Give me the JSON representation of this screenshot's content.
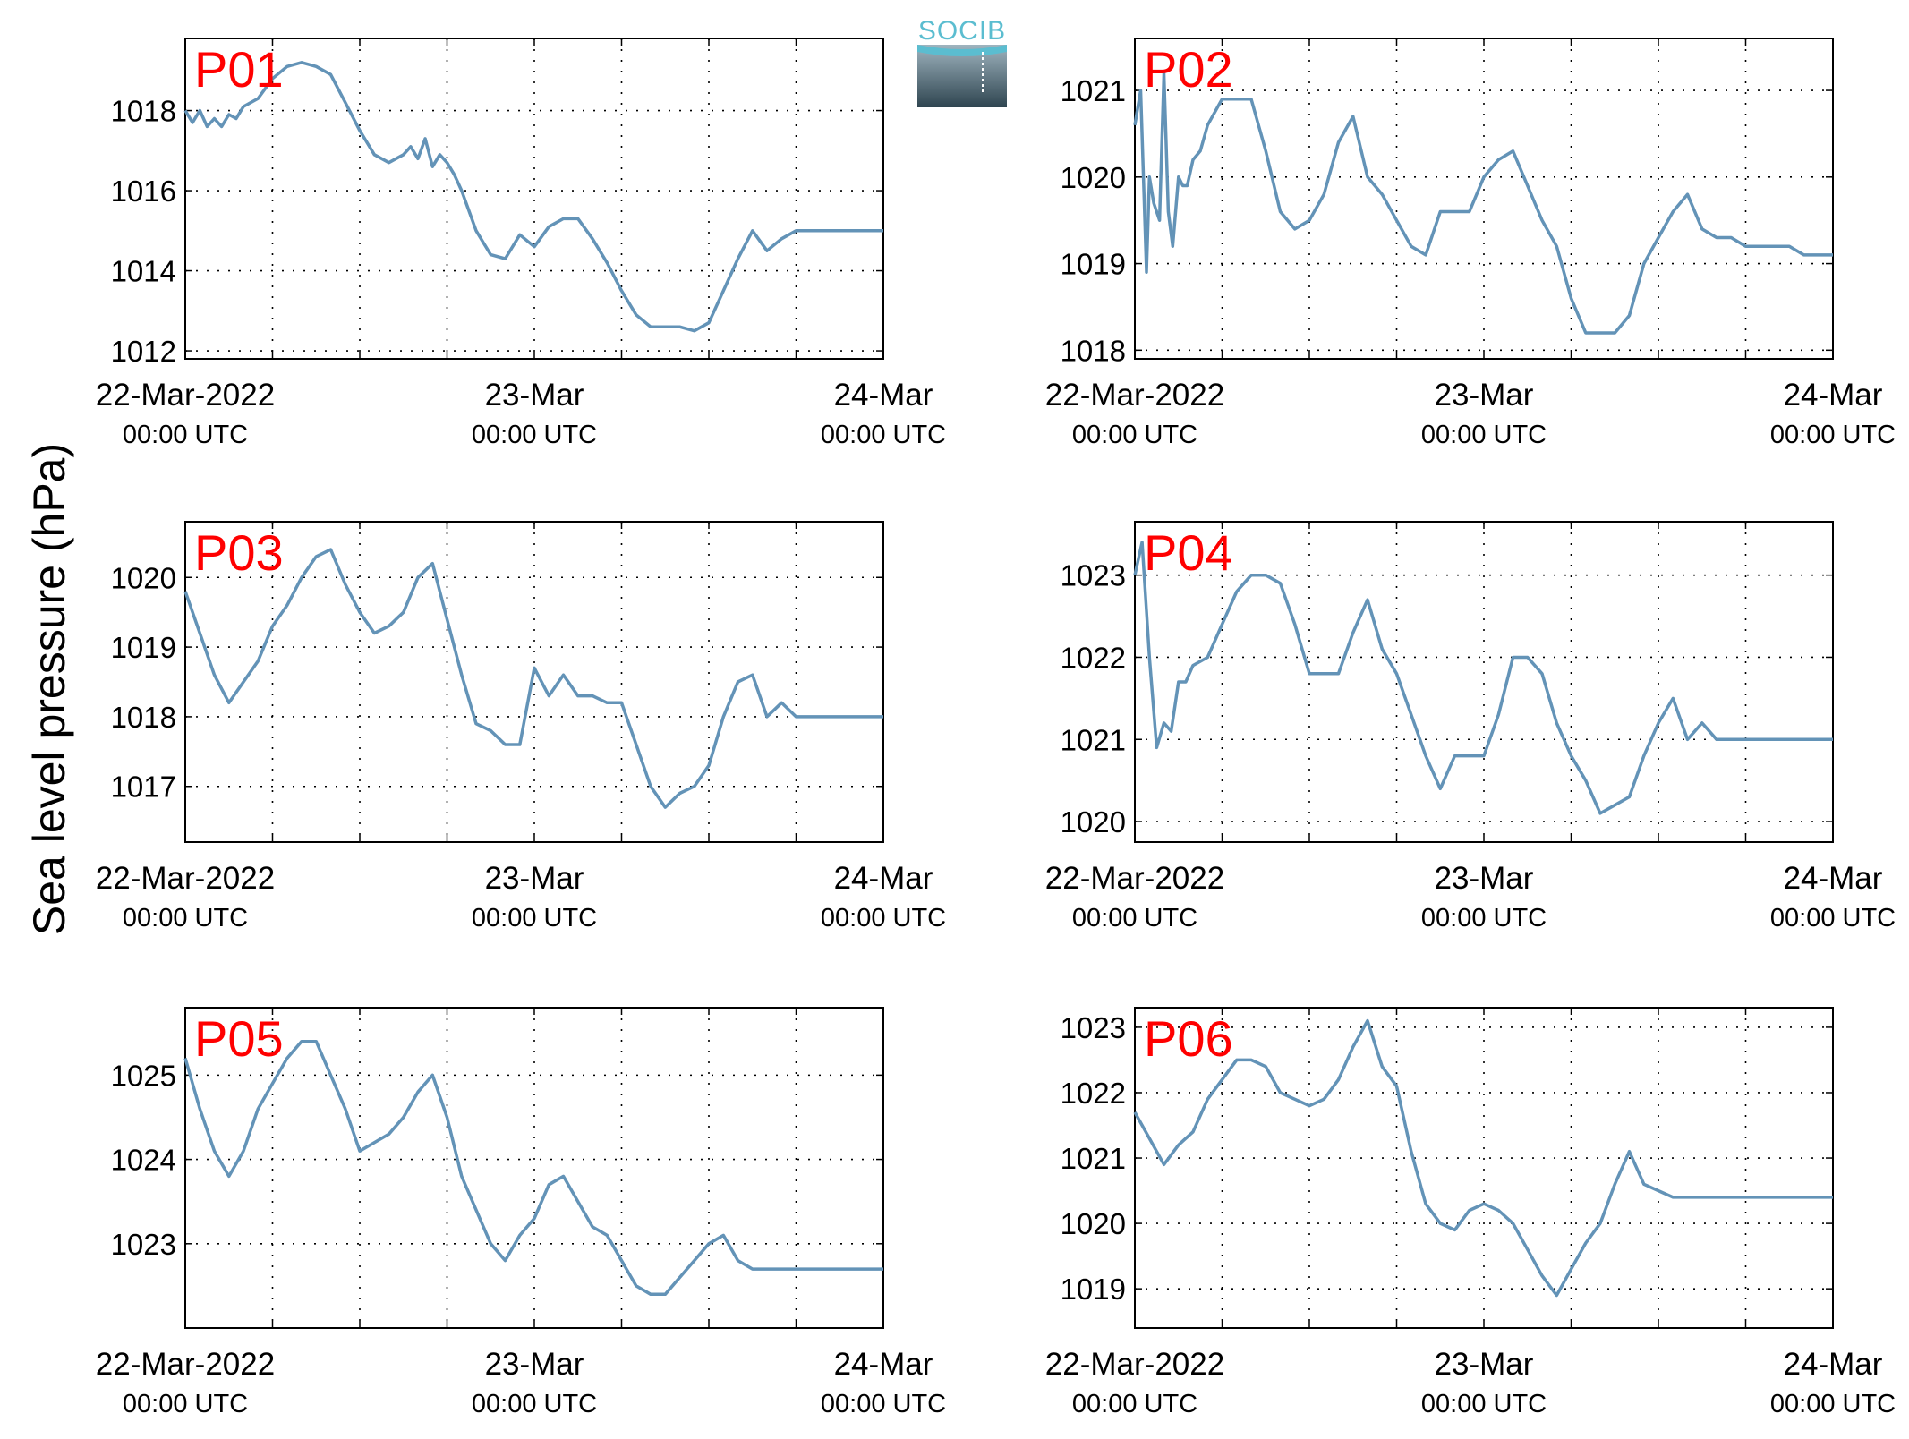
{
  "figure": {
    "ylabel": "Sea level pressure (hPa)",
    "logo_text": "SOCIB"
  },
  "chart_data": [
    {
      "type": "line",
      "panel": "P01",
      "ylabel": "Sea level pressure (hPa)",
      "ylim": [
        1011.8,
        1019.8
      ],
      "yticks": [
        1012,
        1014,
        1016,
        1018
      ],
      "xlim": [
        0,
        48
      ],
      "xtick_labels": [
        {
          "main": "22-Mar-2022",
          "sub": "00:00 UTC"
        },
        {
          "main": "23-Mar",
          "sub": "00:00 UTC"
        },
        {
          "main": "24-Mar",
          "sub": "00:00 UTC"
        }
      ],
      "grid": true,
      "color": "#6393b7",
      "series": [
        {
          "x": [
            0,
            0.5,
            1,
            1.5,
            2,
            2.5,
            3,
            3.5,
            4,
            5,
            6,
            7,
            8,
            9,
            10,
            11,
            12,
            13,
            14,
            15,
            15.5,
            16,
            16.5,
            17,
            17.5,
            18,
            18.5,
            19,
            20,
            21,
            22,
            23,
            24,
            25,
            26,
            27,
            28,
            29,
            30,
            31,
            32,
            33,
            34,
            35,
            36,
            37,
            38,
            39,
            40,
            41,
            42,
            43,
            44,
            45,
            46,
            47,
            48
          ],
          "y": [
            1018.0,
            1017.7,
            1018.0,
            1017.6,
            1017.8,
            1017.6,
            1017.9,
            1017.8,
            1018.1,
            1018.3,
            1018.8,
            1019.1,
            1019.2,
            1019.1,
            1018.9,
            1018.2,
            1017.5,
            1016.9,
            1016.7,
            1016.9,
            1017.1,
            1016.8,
            1017.3,
            1016.6,
            1016.9,
            1016.7,
            1016.4,
            1016.0,
            1015.0,
            1014.4,
            1014.3,
            1014.9,
            1014.6,
            1015.1,
            1015.3,
            1015.3,
            1014.8,
            1014.2,
            1013.5,
            1012.9,
            1012.6,
            1012.6,
            1012.6,
            1012.5,
            1012.7,
            1013.5,
            1014.3,
            1015.0,
            1014.5,
            1014.8,
            1015.0,
            1015.0,
            1015.0,
            1015.0,
            1015.0,
            1015.0,
            1015.0
          ]
        }
      ]
    },
    {
      "type": "line",
      "panel": "P02",
      "ylabel": "Sea level pressure (hPa)",
      "ylim": [
        1017.9,
        1021.6
      ],
      "yticks": [
        1018,
        1019,
        1020,
        1021
      ],
      "xlim": [
        0,
        48
      ],
      "xtick_labels": [
        {
          "main": "22-Mar-2022",
          "sub": "00:00 UTC"
        },
        {
          "main": "23-Mar",
          "sub": "00:00 UTC"
        },
        {
          "main": "24-Mar",
          "sub": "00:00 UTC"
        }
      ],
      "grid": true,
      "color": "#6393b7",
      "series": [
        {
          "x": [
            0,
            0.4,
            0.8,
            1,
            1.3,
            1.7,
            2,
            2.3,
            2.6,
            3,
            3.3,
            3.6,
            4,
            4.5,
            5,
            6,
            7,
            8,
            9,
            10,
            11,
            12,
            13,
            14,
            15,
            16,
            17,
            18,
            19,
            20,
            21,
            22,
            23,
            24,
            25,
            26,
            27,
            28,
            29,
            30,
            31,
            32,
            33,
            34,
            35,
            36,
            37,
            38,
            39,
            40,
            41,
            42,
            43,
            44,
            45,
            46,
            47,
            48
          ],
          "y": [
            1020.6,
            1021.0,
            1018.9,
            1020.0,
            1019.7,
            1019.5,
            1021.2,
            1019.6,
            1019.2,
            1020.0,
            1019.9,
            1019.9,
            1020.2,
            1020.3,
            1020.6,
            1020.9,
            1020.9,
            1020.9,
            1020.3,
            1019.6,
            1019.4,
            1019.5,
            1019.8,
            1020.4,
            1020.7,
            1020.0,
            1019.8,
            1019.5,
            1019.2,
            1019.1,
            1019.6,
            1019.6,
            1019.6,
            1020.0,
            1020.2,
            1020.3,
            1019.9,
            1019.5,
            1019.2,
            1018.6,
            1018.2,
            1018.2,
            1018.2,
            1018.4,
            1019.0,
            1019.3,
            1019.6,
            1019.8,
            1019.4,
            1019.3,
            1019.3,
            1019.2,
            1019.2,
            1019.2,
            1019.2,
            1019.1,
            1019.1,
            1019.1
          ]
        }
      ]
    },
    {
      "type": "line",
      "panel": "P03",
      "ylabel": "Sea level pressure (hPa)",
      "ylim": [
        1016.2,
        1020.8
      ],
      "yticks": [
        1017,
        1018,
        1019,
        1020
      ],
      "xlim": [
        0,
        48
      ],
      "xtick_labels": [
        {
          "main": "22-Mar-2022",
          "sub": "00:00 UTC"
        },
        {
          "main": "23-Mar",
          "sub": "00:00 UTC"
        },
        {
          "main": "24-Mar",
          "sub": "00:00 UTC"
        }
      ],
      "grid": true,
      "color": "#6393b7",
      "series": [
        {
          "x": [
            0,
            1,
            2,
            3,
            4,
            5,
            6,
            7,
            8,
            9,
            10,
            11,
            12,
            13,
            14,
            15,
            16,
            17,
            18,
            19,
            20,
            21,
            22,
            23,
            24,
            25,
            26,
            27,
            28,
            29,
            30,
            31,
            32,
            33,
            34,
            35,
            36,
            37,
            38,
            39,
            40,
            41,
            42,
            43,
            44,
            45,
            46,
            47,
            48
          ],
          "y": [
            1019.8,
            1019.2,
            1018.6,
            1018.2,
            1018.5,
            1018.8,
            1019.3,
            1019.6,
            1020.0,
            1020.3,
            1020.4,
            1019.9,
            1019.5,
            1019.2,
            1019.3,
            1019.5,
            1020.0,
            1020.2,
            1019.4,
            1018.6,
            1017.9,
            1017.8,
            1017.6,
            1017.6,
            1018.7,
            1018.3,
            1018.6,
            1018.3,
            1018.3,
            1018.2,
            1018.2,
            1017.6,
            1017.0,
            1016.7,
            1016.9,
            1017.0,
            1017.3,
            1018.0,
            1018.5,
            1018.6,
            1018.0,
            1018.2,
            1018.0,
            1018.0,
            1018.0,
            1018.0,
            1018.0,
            1018.0,
            1018.0
          ]
        }
      ]
    },
    {
      "type": "line",
      "panel": "P04",
      "ylabel": "Sea level pressure (hPa)",
      "ylim": [
        1019.75,
        1023.65
      ],
      "yticks": [
        1020,
        1021,
        1022,
        1023
      ],
      "xlim": [
        0,
        48
      ],
      "xtick_labels": [
        {
          "main": "22-Mar-2022",
          "sub": "00:00 UTC"
        },
        {
          "main": "23-Mar",
          "sub": "00:00 UTC"
        },
        {
          "main": "24-Mar",
          "sub": "00:00 UTC"
        }
      ],
      "grid": true,
      "color": "#6393b7",
      "series": [
        {
          "x": [
            0,
            0.5,
            1,
            1.5,
            2,
            2.5,
            3,
            3.5,
            4,
            5,
            6,
            7,
            8,
            9,
            10,
            11,
            12,
            13,
            14,
            15,
            16,
            17,
            18,
            19,
            20,
            21,
            22,
            23,
            24,
            25,
            26,
            27,
            28,
            29,
            30,
            31,
            32,
            33,
            34,
            35,
            36,
            37,
            38,
            39,
            40,
            41,
            42,
            43,
            44,
            45,
            46,
            47,
            48
          ],
          "y": [
            1023.0,
            1023.4,
            1022.0,
            1020.9,
            1021.2,
            1021.1,
            1021.7,
            1021.7,
            1021.9,
            1022.0,
            1022.4,
            1022.8,
            1023.0,
            1023.0,
            1022.9,
            1022.4,
            1021.8,
            1021.8,
            1021.8,
            1022.3,
            1022.7,
            1022.1,
            1021.8,
            1021.3,
            1020.8,
            1020.4,
            1020.8,
            1020.8,
            1020.8,
            1021.3,
            1022.0,
            1022.0,
            1021.8,
            1021.2,
            1020.8,
            1020.5,
            1020.1,
            1020.2,
            1020.3,
            1020.8,
            1021.2,
            1021.5,
            1021.0,
            1021.2,
            1021.0,
            1021.0,
            1021.0,
            1021.0,
            1021.0,
            1021.0,
            1021.0,
            1021.0,
            1021.0
          ]
        }
      ]
    },
    {
      "type": "line",
      "panel": "P05",
      "ylabel": "Sea level pressure (hPa)",
      "ylim": [
        1022.0,
        1025.8
      ],
      "yticks": [
        1023,
        1024,
        1025
      ],
      "xlim": [
        0,
        48
      ],
      "xtick_labels": [
        {
          "main": "22-Mar-2022",
          "sub": "00:00 UTC"
        },
        {
          "main": "23-Mar",
          "sub": "00:00 UTC"
        },
        {
          "main": "24-Mar",
          "sub": "00:00 UTC"
        }
      ],
      "grid": true,
      "color": "#6393b7",
      "series": [
        {
          "x": [
            0,
            1,
            2,
            3,
            4,
            5,
            6,
            7,
            8,
            9,
            10,
            11,
            12,
            13,
            14,
            15,
            16,
            17,
            18,
            19,
            20,
            21,
            22,
            23,
            24,
            25,
            26,
            27,
            28,
            29,
            30,
            31,
            32,
            33,
            34,
            35,
            36,
            37,
            38,
            39,
            40,
            41,
            42,
            43,
            44,
            45,
            46,
            47,
            48
          ],
          "y": [
            1025.2,
            1024.6,
            1024.1,
            1023.8,
            1024.1,
            1024.6,
            1024.9,
            1025.2,
            1025.4,
            1025.4,
            1025.0,
            1024.6,
            1024.1,
            1024.2,
            1024.3,
            1024.5,
            1024.8,
            1025.0,
            1024.5,
            1023.8,
            1023.4,
            1023.0,
            1022.8,
            1023.1,
            1023.3,
            1023.7,
            1023.8,
            1023.5,
            1023.2,
            1023.1,
            1022.8,
            1022.5,
            1022.4,
            1022.4,
            1022.6,
            1022.8,
            1023.0,
            1023.1,
            1022.8,
            1022.7,
            1022.7,
            1022.7,
            1022.7,
            1022.7,
            1022.7,
            1022.7,
            1022.7,
            1022.7,
            1022.7
          ]
        }
      ]
    },
    {
      "type": "line",
      "panel": "P06",
      "ylabel": "Sea level pressure (hPa)",
      "ylim": [
        1018.4,
        1023.3
      ],
      "yticks": [
        1019,
        1020,
        1021,
        1022,
        1023
      ],
      "xlim": [
        0,
        48
      ],
      "xtick_labels": [
        {
          "main": "22-Mar-2022",
          "sub": "00:00 UTC"
        },
        {
          "main": "23-Mar",
          "sub": "00:00 UTC"
        },
        {
          "main": "24-Mar",
          "sub": "00:00 UTC"
        }
      ],
      "grid": true,
      "color": "#6393b7",
      "series": [
        {
          "x": [
            0,
            1,
            2,
            3,
            4,
            5,
            6,
            7,
            8,
            9,
            10,
            11,
            12,
            13,
            14,
            15,
            16,
            17,
            18,
            19,
            20,
            21,
            22,
            23,
            24,
            25,
            26,
            27,
            28,
            29,
            30,
            31,
            32,
            33,
            34,
            35,
            36,
            37,
            38,
            39,
            40,
            41,
            42,
            43,
            44,
            45,
            46,
            47,
            48
          ],
          "y": [
            1021.7,
            1021.3,
            1020.9,
            1021.2,
            1021.4,
            1021.9,
            1022.2,
            1022.5,
            1022.5,
            1022.4,
            1022.0,
            1021.9,
            1021.8,
            1021.9,
            1022.2,
            1022.7,
            1023.1,
            1022.4,
            1022.1,
            1021.1,
            1020.3,
            1020.0,
            1019.9,
            1020.2,
            1020.3,
            1020.2,
            1020.0,
            1019.6,
            1019.2,
            1018.9,
            1019.3,
            1019.7,
            1020.0,
            1020.6,
            1021.1,
            1020.6,
            1020.5,
            1020.4,
            1020.4,
            1020.4,
            1020.4,
            1020.4,
            1020.4,
            1020.4,
            1020.4,
            1020.4,
            1020.4,
            1020.4,
            1020.4
          ]
        }
      ]
    }
  ]
}
